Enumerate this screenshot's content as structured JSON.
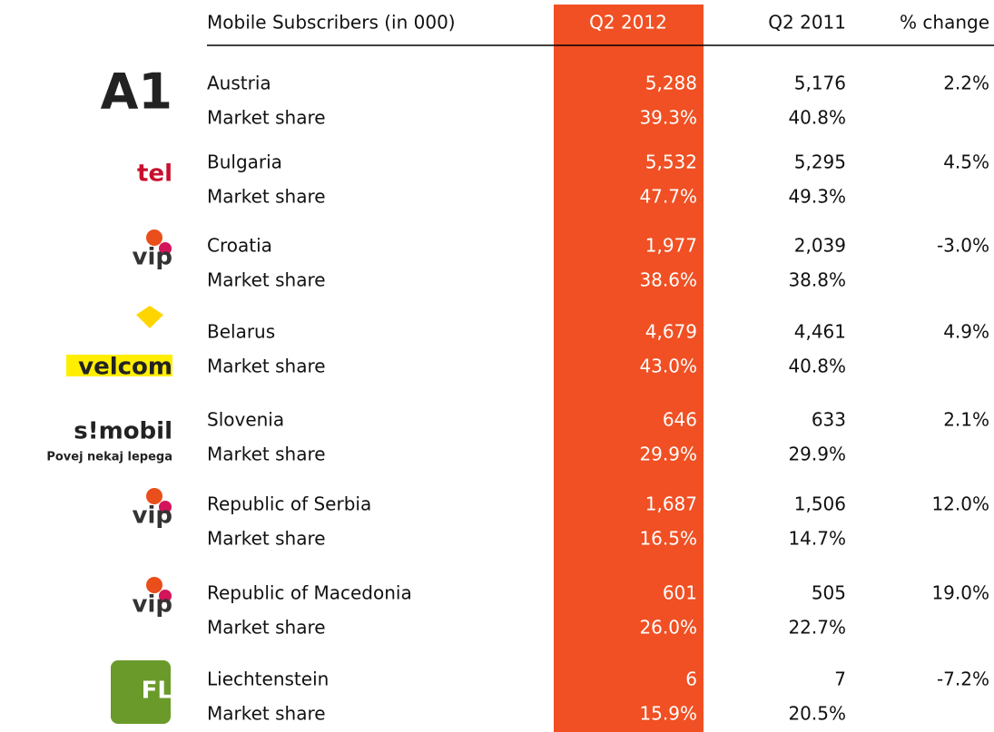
{
  "header": [
    "Mobile Subscribers (in 000)",
    "Q2 2012",
    "Q2 2011",
    "% change"
  ],
  "share_label": "Market share",
  "groups": [
    {
      "logo": [
        "A1"
      ],
      "country": "Austria",
      "values": [
        "5,288",
        "5,176",
        "2.2%"
      ],
      "share": [
        "39.3%",
        "40.8%"
      ]
    },
    {
      "logo": [
        "tel"
      ],
      "country": "Bulgaria",
      "values": [
        "5,532",
        "5,295",
        "4.5%"
      ],
      "share": [
        "47.7%",
        "49.3%"
      ]
    },
    {
      "logo": [
        "vip"
      ],
      "country": "Croatia",
      "values": [
        "1,977",
        "2,039",
        "-3.0%"
      ],
      "share": [
        "38.6%",
        "38.8%"
      ]
    },
    {
      "logo": [
        "velcom"
      ],
      "country": "Belarus",
      "values": [
        "4,679",
        "4,461",
        "4.9%"
      ],
      "share": [
        "43.0%",
        "40.8%"
      ]
    },
    {
      "logo": [
        "s!mobil",
        "Povej nekaj lepega"
      ],
      "country": "Slovenia",
      "values": [
        "646",
        "633",
        "2.1%"
      ],
      "share": [
        "29.9%",
        "29.9%"
      ]
    },
    {
      "logo": [
        "vip"
      ],
      "country": "Republic of Serbia",
      "values": [
        "1,687",
        "1,506",
        "12.0%"
      ],
      "share": [
        "16.5%",
        "14.7%"
      ]
    },
    {
      "logo": [
        "vip"
      ],
      "country": "Republic of Macedonia",
      "values": [
        "601",
        "505",
        "19.0%"
      ],
      "share": [
        "26.0%",
        "22.7%"
      ]
    },
    {
      "logo": [
        "FL"
      ],
      "country": "Liechtenstein",
      "values": [
        "6",
        "7",
        "-7.2%"
      ],
      "share": [
        "15.9%",
        "20.5%"
      ]
    }
  ]
}
